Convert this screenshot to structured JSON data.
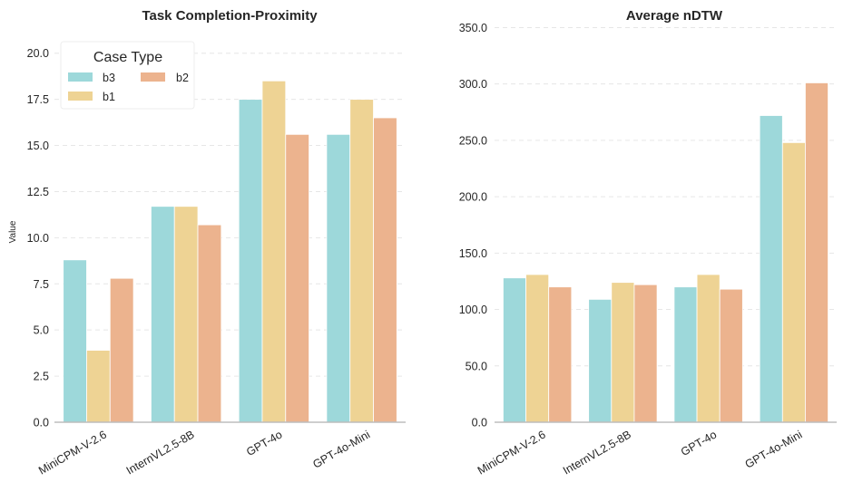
{
  "chart_data": [
    {
      "type": "bar",
      "title": "Task Completion-Proximity",
      "xlabel": "",
      "ylabel": "Value",
      "categories": [
        "MiniCPM-V-2.6",
        "InternVL2.5-8B",
        "GPT-4o",
        "GPT-4o-Mini"
      ],
      "ylim": [
        0,
        22
      ],
      "yticks": [
        "0.0",
        "2.5",
        "5.0",
        "7.5",
        "10.0",
        "12.5",
        "15.0",
        "17.5",
        "20.0"
      ],
      "grid": "horizontal dashed",
      "legend": {
        "title": "Case Type",
        "placement": "top-left",
        "entries": [
          "b3",
          "b2",
          "b1"
        ]
      },
      "series": [
        {
          "name": "b3",
          "values": [
            8.8,
            11.7,
            17.5,
            15.6
          ]
        },
        {
          "name": "b1",
          "values": [
            3.9,
            11.7,
            18.5,
            17.5
          ]
        },
        {
          "name": "b2",
          "values": [
            7.8,
            10.7,
            15.6,
            16.5
          ]
        }
      ]
    },
    {
      "type": "bar",
      "title": "Average nDTW",
      "xlabel": "",
      "ylabel": "",
      "categories": [
        "MiniCPM-V-2.6",
        "InternVL2.5-8B",
        "GPT-4o",
        "GPT-4o-Mini"
      ],
      "ylim": [
        0,
        360
      ],
      "yticks": [
        "0.0",
        "50.0",
        "100.0",
        "150.0",
        "200.0",
        "250.0",
        "300.0",
        "350.0"
      ],
      "grid": "horizontal dashed",
      "series": [
        {
          "name": "b3",
          "values": [
            128,
            109,
            120,
            272
          ]
        },
        {
          "name": "b1",
          "values": [
            131,
            124,
            131,
            248
          ]
        },
        {
          "name": "b2",
          "values": [
            120,
            122,
            118,
            301
          ]
        }
      ]
    }
  ],
  "colors": {
    "b3": "#9dd8da",
    "b1": "#eed394",
    "b2": "#ecb38e"
  }
}
